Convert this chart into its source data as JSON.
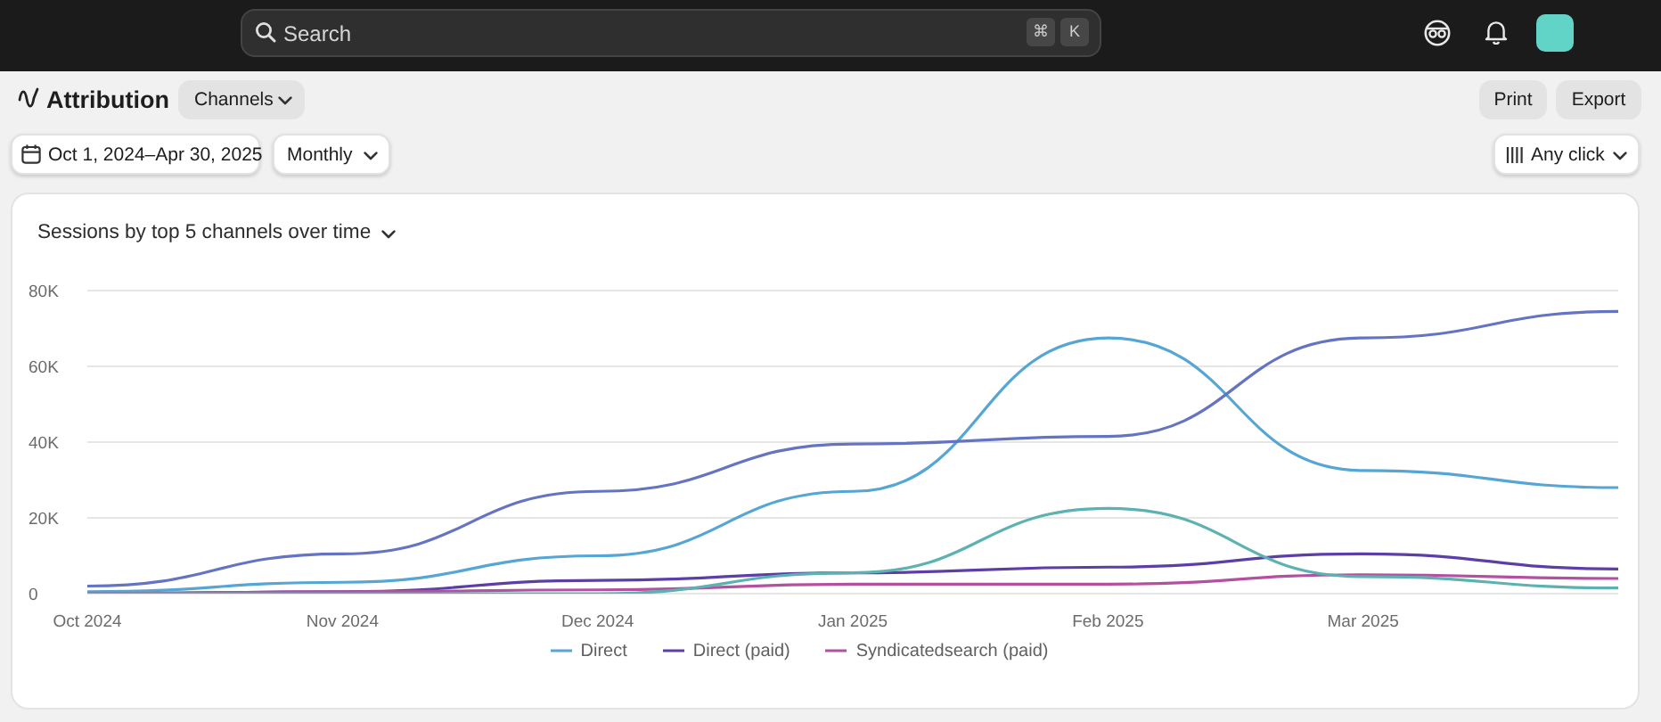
{
  "chart_data": {
    "type": "line",
    "title": "Sessions by top 5 channels over time",
    "annotations": [
      "Search",
      "⌘",
      "K",
      "Attribution",
      "Channels",
      "Print",
      "Export",
      "Oct 1, 2024–Apr 30, 2025",
      "Monthly",
      "Any click"
    ],
    "categories": [
      "Oct 2024",
      "Nov 2024",
      "Dec 2024",
      "Jan 2025",
      "Feb 2025",
      "Mar 2025",
      null
    ],
    "series": [
      {
        "name": "Direct",
        "color": "#55a6d4",
        "values": [
          500,
          3000,
          10000,
          27000,
          67500,
          32500,
          28000
        ]
      },
      {
        "name": "Direct (paid)",
        "color": "#5b3fa6",
        "values": [
          0,
          500,
          3500,
          5500,
          7000,
          10500,
          6500
        ]
      },
      {
        "color": "#6574c2",
        "values": [
          2000,
          10500,
          27000,
          39500,
          41500,
          67500,
          74500
        ]
      },
      {
        "name": "Syndicatedsearch (paid)",
        "color": "#b3509f",
        "values": [
          0,
          500,
          1000,
          2500,
          2500,
          5000,
          4000
        ]
      },
      {
        "color": "#5cb2b0",
        "values": [
          0,
          0,
          0,
          5500,
          22500,
          4500,
          1500
        ]
      }
    ],
    "ylim": [
      0,
      80000
    ],
    "yticks": [
      0,
      {
        "value": 20000,
        "label": "20K"
      },
      {
        "value": 40000,
        "label": "40K"
      },
      {
        "value": 60000,
        "label": "60K"
      },
      {
        "value": 80000,
        "label": "80K"
      }
    ],
    "grid": "y",
    "legend": "bottom",
    "line_style": "solid"
  }
}
